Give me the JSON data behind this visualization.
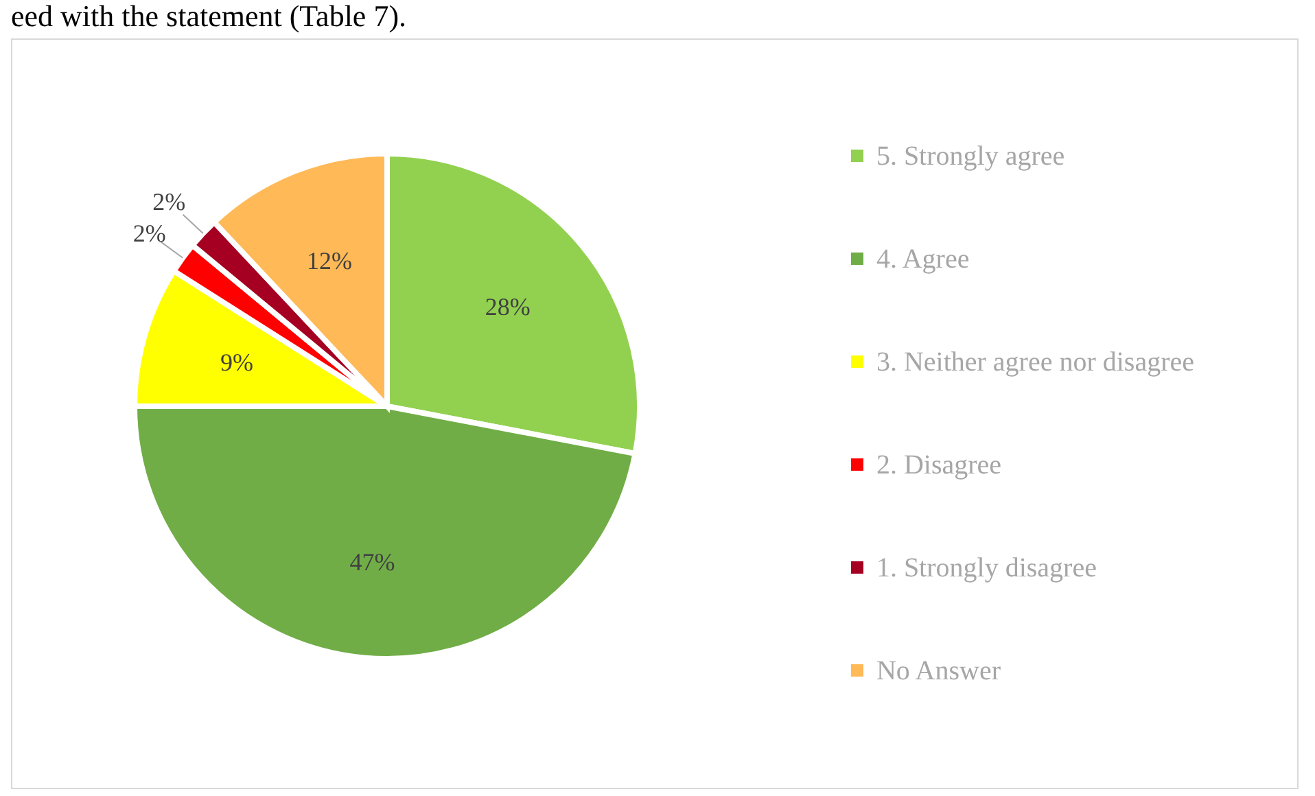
{
  "chart_data": {
    "type": "pie",
    "categories": [
      "5. Strongly agree",
      "4. Agree",
      "3. Neither agree nor disagree",
      "2. Disagree",
      "1. Strongly disagree",
      "No Answer"
    ],
    "values": [
      28,
      47,
      9,
      2,
      2,
      12
    ],
    "colors": [
      "#92d050",
      "#70ad47",
      "#ffff00",
      "#ff0000",
      "#a50021",
      "#ffb957"
    ],
    "value_labels": [
      "28%",
      "47%",
      "9%",
      "2%",
      "2%",
      "12%"
    ],
    "legend": "right",
    "annotations": [
      "eed with the statement (Table 7)."
    ]
  }
}
